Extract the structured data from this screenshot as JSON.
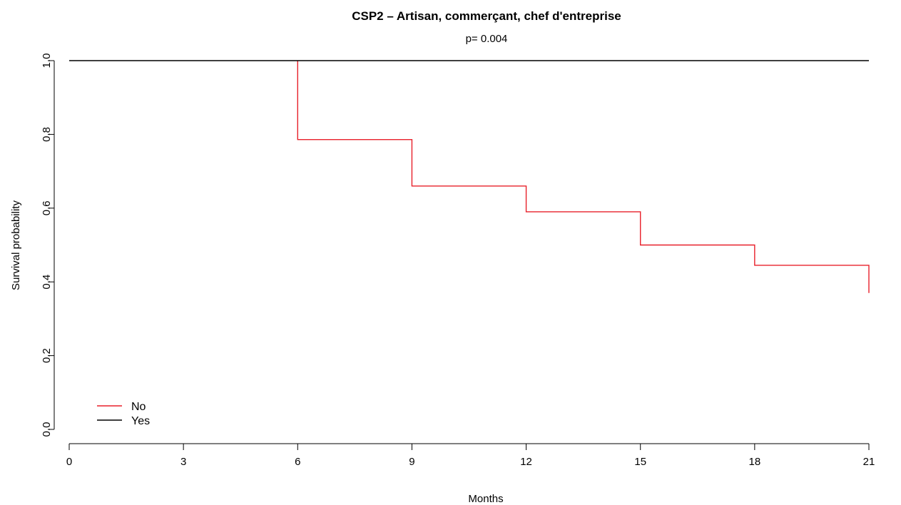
{
  "chart_data": {
    "type": "line",
    "title": "CSP2 – Artisan, commerçant, chef d'entreprise",
    "subtitle": "p= 0.004",
    "xlabel": "Months",
    "ylabel": "Survival probability",
    "xlim": [
      0,
      21
    ],
    "ylim": [
      0,
      1
    ],
    "x_ticks": [
      0,
      3,
      6,
      9,
      12,
      15,
      18,
      21
    ],
    "y_ticks": [
      0.0,
      0.2,
      0.4,
      0.6,
      0.8,
      1.0
    ],
    "y_tick_labels": [
      "0.0",
      "0.2",
      "0.4",
      "0.6",
      "0.8",
      "1.0"
    ],
    "step": true,
    "grid": false,
    "legend_position": "bottom-left",
    "series": [
      {
        "name": "No",
        "color": "#e8202a",
        "x": [
          6,
          9,
          12,
          15,
          18,
          21
        ],
        "y": [
          0.786,
          0.66,
          0.59,
          0.5,
          0.445,
          0.37
        ]
      },
      {
        "name": "Yes",
        "color": "#000000",
        "x": [
          0,
          21
        ],
        "y": [
          1.0,
          1.0
        ]
      }
    ]
  }
}
